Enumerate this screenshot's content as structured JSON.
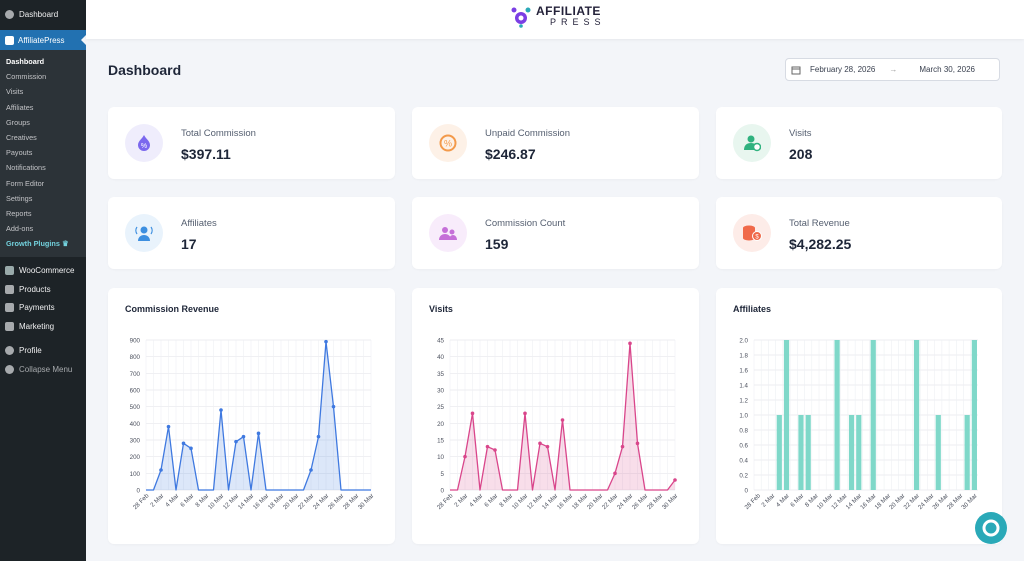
{
  "sidebar": {
    "dashboard": "Dashboard",
    "plugin": "AffiliatePress",
    "sub": [
      "Dashboard",
      "Commission",
      "Visits",
      "Affiliates",
      "Groups",
      "Creatives",
      "Payouts",
      "Notifications",
      "Form Editor",
      "Settings",
      "Reports",
      "Add-ons"
    ],
    "growth": "Growth Plugins",
    "menu": [
      "WooCommerce",
      "Products",
      "Payments",
      "Marketing"
    ],
    "profile": "Profile",
    "collapse": "Collapse Menu"
  },
  "logo": {
    "line1": "AFFILIATE",
    "line2": "PRESS"
  },
  "page_title": "Dashboard",
  "date_range": {
    "start": "February 28, 2026",
    "arrow": "→",
    "end": "March 30, 2026"
  },
  "stats": [
    {
      "label": "Total Commission",
      "value": "$397.11",
      "icon": "commission-icon",
      "color": "#7b68ee"
    },
    {
      "label": "Unpaid Commission",
      "value": "$246.87",
      "icon": "unpaid-icon",
      "color": "#f39a4b"
    },
    {
      "label": "Visits",
      "value": "208",
      "icon": "visits-icon",
      "color": "#30b27f"
    },
    {
      "label": "Affiliates",
      "value": "17",
      "icon": "affiliates-icon",
      "color": "#3d8fe0"
    },
    {
      "label": "Commission Count",
      "value": "159",
      "icon": "count-icon",
      "color": "#c56fd8"
    },
    {
      "label": "Total Revenue",
      "value": "$4,282.25",
      "icon": "revenue-icon",
      "color": "#f06a4a"
    }
  ],
  "chart_data": [
    {
      "type": "area",
      "title": "Commission Revenue",
      "color": "#3f79e0",
      "ylim": [
        0,
        900
      ],
      "yticks": [
        0,
        100,
        200,
        300,
        400,
        500,
        600,
        700,
        800,
        900
      ],
      "x": [
        "28 Feb",
        "1 Mar",
        "2 Mar",
        "3 Mar",
        "4 Mar",
        "5 Mar",
        "6 Mar",
        "7 Mar",
        "8 Mar",
        "9 Mar",
        "10 Mar",
        "11 Mar",
        "12 Mar",
        "13 Mar",
        "14 Mar",
        "15 Mar",
        "16 Mar",
        "17 Mar",
        "18 Mar",
        "19 Mar",
        "20 Mar",
        "21 Mar",
        "22 Mar",
        "23 Mar",
        "24 Mar",
        "25 Mar",
        "26 Mar",
        "27 Mar",
        "28 Mar",
        "29 Mar",
        "30 Mar"
      ],
      "xticks": [
        "28 Feb",
        "2 Mar",
        "4 Mar",
        "6 Mar",
        "8 Mar",
        "10 Mar",
        "12 Mar",
        "14 Mar",
        "16 Mar",
        "18 Mar",
        "20 Mar",
        "22 Mar",
        "24 Mar",
        "26 Mar",
        "28 Mar",
        "30 Mar"
      ],
      "values": [
        0,
        0,
        120,
        380,
        0,
        280,
        250,
        0,
        0,
        0,
        480,
        0,
        290,
        320,
        0,
        340,
        0,
        0,
        0,
        0,
        0,
        0,
        120,
        320,
        890,
        500,
        0,
        0,
        0,
        0,
        0
      ]
    },
    {
      "type": "area",
      "title": "Visits",
      "color": "#d9468b",
      "ylim": [
        0,
        45
      ],
      "yticks": [
        0,
        5,
        10,
        15,
        20,
        25,
        30,
        35,
        40,
        45
      ],
      "x": [
        "28 Feb",
        "1 Mar",
        "2 Mar",
        "3 Mar",
        "4 Mar",
        "5 Mar",
        "6 Mar",
        "7 Mar",
        "8 Mar",
        "9 Mar",
        "10 Mar",
        "11 Mar",
        "12 Mar",
        "13 Mar",
        "14 Mar",
        "15 Mar",
        "16 Mar",
        "17 Mar",
        "18 Mar",
        "19 Mar",
        "20 Mar",
        "21 Mar",
        "22 Mar",
        "23 Mar",
        "24 Mar",
        "25 Mar",
        "26 Mar",
        "27 Mar",
        "28 Mar",
        "29 Mar",
        "30 Mar"
      ],
      "xticks": [
        "28 Feb",
        "2 Mar",
        "4 Mar",
        "6 Mar",
        "8 Mar",
        "10 Mar",
        "12 Mar",
        "14 Mar",
        "16 Mar",
        "18 Mar",
        "20 Mar",
        "22 Mar",
        "24 Mar",
        "26 Mar",
        "28 Mar",
        "30 Mar"
      ],
      "values": [
        0,
        0,
        10,
        23,
        0,
        13,
        12,
        0,
        0,
        0,
        23,
        0,
        14,
        13,
        0,
        21,
        0,
        0,
        0,
        0,
        0,
        0,
        5,
        13,
        44,
        14,
        0,
        0,
        0,
        0,
        3
      ]
    },
    {
      "type": "bar",
      "title": "Affiliates",
      "color": "#7fd8c9",
      "ylim": [
        0,
        2.0
      ],
      "yticks": [
        "0",
        "0.2",
        "0.4",
        "0.6",
        "0.8",
        "1.0",
        "1.2",
        "1.4",
        "1.6",
        "1.8",
        "2.0"
      ],
      "x": [
        "28 Feb",
        "1 Mar",
        "2 Mar",
        "3 Mar",
        "4 Mar",
        "5 Mar",
        "6 Mar",
        "7 Mar",
        "8 Mar",
        "9 Mar",
        "10 Mar",
        "11 Mar",
        "12 Mar",
        "13 Mar",
        "14 Mar",
        "15 Mar",
        "16 Mar",
        "17 Mar",
        "18 Mar",
        "19 Mar",
        "20 Mar",
        "21 Mar",
        "22 Mar",
        "23 Mar",
        "24 Mar",
        "25 Mar",
        "26 Mar",
        "27 Mar",
        "28 Mar",
        "29 Mar",
        "30 Mar"
      ],
      "xticks": [
        "28 Feb",
        "2 Mar",
        "4 Mar",
        "6 Mar",
        "8 Mar",
        "10 Mar",
        "12 Mar",
        "14 Mar",
        "16 Mar",
        "18 Mar",
        "20 Mar",
        "22 Mar",
        "24 Mar",
        "26 Mar",
        "28 Mar",
        "30 Mar"
      ],
      "values": [
        0,
        0,
        0,
        1,
        2,
        0,
        1,
        1,
        0,
        0,
        0,
        2,
        0,
        1,
        1,
        0,
        2,
        0,
        0,
        0,
        0,
        0,
        2,
        0,
        0,
        1,
        0,
        0,
        0,
        1,
        2
      ]
    }
  ]
}
